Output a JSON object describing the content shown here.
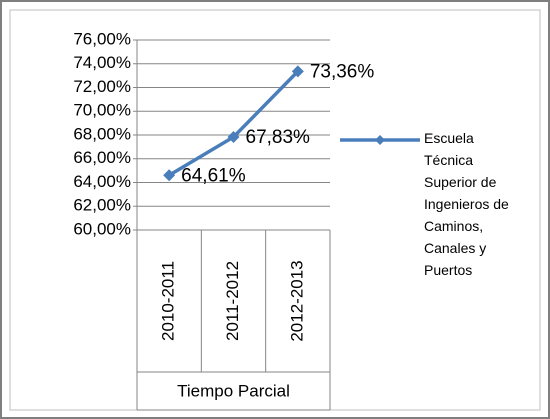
{
  "chart_data": {
    "type": "line",
    "xlabel": "Tiempo Parcial",
    "categories": [
      "2010-2011",
      "2011-2012",
      "2012-2013"
    ],
    "series": [
      {
        "name": "Escuela Técnica Superior de Ingenieros de Caminos, Canales y Puertos",
        "color": "#4a7ebb",
        "values": [
          64.61,
          67.83,
          73.36
        ],
        "value_labels": [
          "64,61%",
          "67,83%",
          "73,36%"
        ]
      }
    ],
    "ylim": [
      60,
      76
    ],
    "yticks": [
      {
        "value": 60,
        "label": "60,00%"
      },
      {
        "value": 62,
        "label": "62,00%"
      },
      {
        "value": 64,
        "label": "64,00%"
      },
      {
        "value": 66,
        "label": "66,00%"
      },
      {
        "value": 68,
        "label": "68,00%"
      },
      {
        "value": 70,
        "label": "70,00%"
      },
      {
        "value": 72,
        "label": "72,00%"
      },
      {
        "value": 74,
        "label": "74,00%"
      },
      {
        "value": 76,
        "label": "76,00%"
      }
    ],
    "grid": true,
    "legend": "right"
  }
}
